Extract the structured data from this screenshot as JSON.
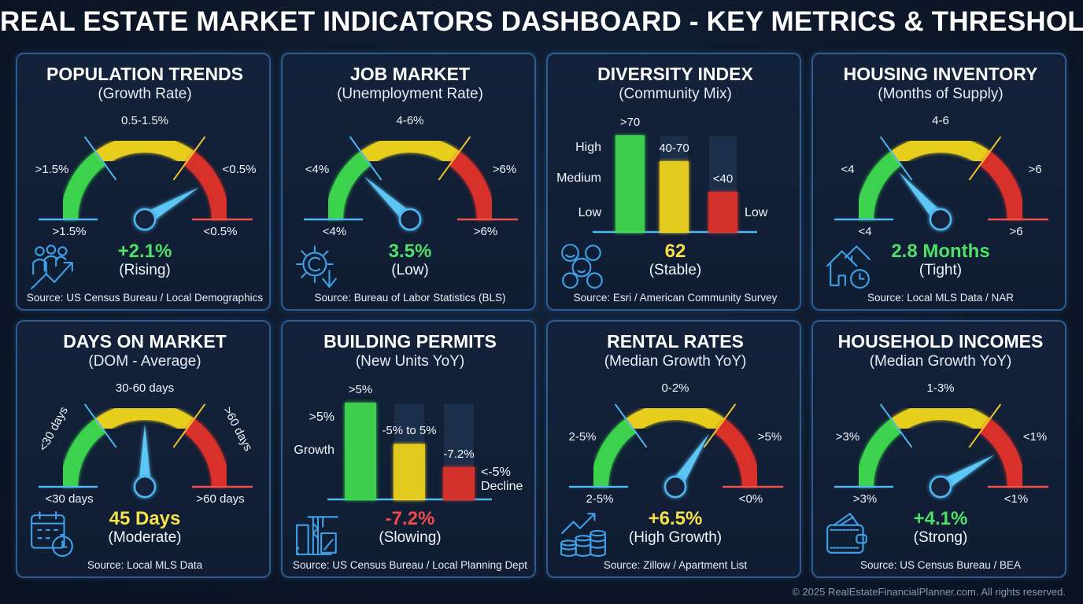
{
  "title": "REAL ESTATE MARKET INDICATORS DASHBOARD - KEY METRICS & THRESHOLDS",
  "footer": "© 2025 RealEstateFinancialPlanner.com. All rights reserved.",
  "colors": {
    "green": "#3fdc4f",
    "yellow": "#f3d81a",
    "red": "#e3322c",
    "blue": "#4fb8f0",
    "value_green": "#4fe06a",
    "value_yellow": "#f7e14a",
    "value_red": "#f04a48"
  },
  "chart_data": [
    {
      "type": "gauge",
      "id": "population",
      "title": "POPULATION TRENDS",
      "subtitle": "(Growth Rate)",
      "labels": {
        "top": "0.5-1.5%",
        "left": ">1.5%",
        "right": "<0.5%",
        "bottom_left": ">1.5%",
        "bottom_right": "<0.5%"
      },
      "needle_level": 0.83,
      "value": "+2.1%",
      "value_color": "green",
      "status": "(Rising)",
      "source": "Source: US Census Bureau / Local Demographics",
      "icon": "people-growth-icon"
    },
    {
      "type": "gauge",
      "id": "job-market",
      "title": "JOB MARKET",
      "subtitle": "(Unemployment Rate)",
      "labels": {
        "top": "4-6%",
        "left": "<4%",
        "right": ">6%",
        "bottom_left": "<4%",
        "bottom_right": ">6%"
      },
      "needle_level": 0.24,
      "value": "3.5%",
      "value_color": "green",
      "status": "(Low)",
      "source": "Source: Bureau of Labor Statistics (BLS)",
      "icon": "gear-down-icon"
    },
    {
      "type": "bar",
      "id": "diversity",
      "title": "DIVERSITY INDEX",
      "subtitle": "(Community Mix)",
      "categories": [
        ">70",
        "40-70",
        "<40"
      ],
      "values": [
        1.0,
        0.73,
        0.41
      ],
      "left_labels": [
        "High",
        "Medium",
        "Low"
      ],
      "right_labels": [
        "Low"
      ],
      "value": "62",
      "value_color": "yellow",
      "status": "(Stable)",
      "source": "Source: Esri / American Community Survey",
      "icon": "faces-icon"
    },
    {
      "type": "gauge",
      "id": "housing-inventory",
      "title": "HOUSING INVENTORY",
      "subtitle": "(Months of Supply)",
      "labels": {
        "top": "4-6",
        "left": "<4",
        "right": ">6",
        "bottom_left": "<4",
        "bottom_right": ">6"
      },
      "needle_level": 0.27,
      "value": "2.8 Months",
      "value_color": "green",
      "status": "(Tight)",
      "source": "Source: Local MLS Data / NAR",
      "icon": "house-clock-icon"
    },
    {
      "type": "gauge",
      "id": "days-on-market",
      "title": "DAYS ON MARKET",
      "subtitle": "(DOM - Average)",
      "labels": {
        "top": "30-60 days",
        "left": "<30 days",
        "right": ">60 days",
        "bottom_left": "<30 days",
        "bottom_right": ">60 days"
      },
      "rotated_side_labels": true,
      "needle_level": 0.5,
      "value": "45 Days",
      "value_color": "yellow",
      "status": "(Moderate)",
      "source": "Source: Local MLS Data",
      "icon": "calendar-stopwatch-icon"
    },
    {
      "type": "bar",
      "id": "building-permits",
      "title": "BUILDING PERMITS",
      "subtitle": "(New Units YoY)",
      "categories": [
        ">5%",
        "-5% to 5%",
        "-7.2%"
      ],
      "values": [
        1.0,
        0.57,
        0.33
      ],
      "left_labels": [
        ">5%",
        "Growth"
      ],
      "right_labels": [
        "<-5%",
        "Decline"
      ],
      "value": "-7.2%",
      "value_color": "red",
      "status": "(Slowing)",
      "source": "Source: US Census Bureau / Local Planning Dept",
      "icon": "construction-crane-icon"
    },
    {
      "type": "gauge",
      "id": "rental-rates",
      "title": "RENTAL RATES",
      "subtitle": "(Median Growth YoY)",
      "labels": {
        "top": "0-2%",
        "left": "2-5%",
        "right": ">5%",
        "bottom_left": "2-5%",
        "bottom_right": "<0%"
      },
      "needle_level": 0.68,
      "value": "+6.5%",
      "value_color": "yellow",
      "status": "(High Growth)",
      "source": "Source: Zillow / Apartment List",
      "icon": "coins-growth-icon"
    },
    {
      "type": "gauge",
      "id": "household-incomes",
      "title": "HOUSEHOLD INCOMES",
      "subtitle": "(Median Growth YoY)",
      "labels": {
        "top": "1-3%",
        "left": ">3%",
        "right": "<1%",
        "bottom_left": ">3%",
        "bottom_right": "<1%"
      },
      "needle_level": 0.83,
      "value": "+4.1%",
      "value_color": "green",
      "status": "(Strong)",
      "source": "Source: US Census Bureau / BEA",
      "icon": "wallet-icon"
    }
  ]
}
